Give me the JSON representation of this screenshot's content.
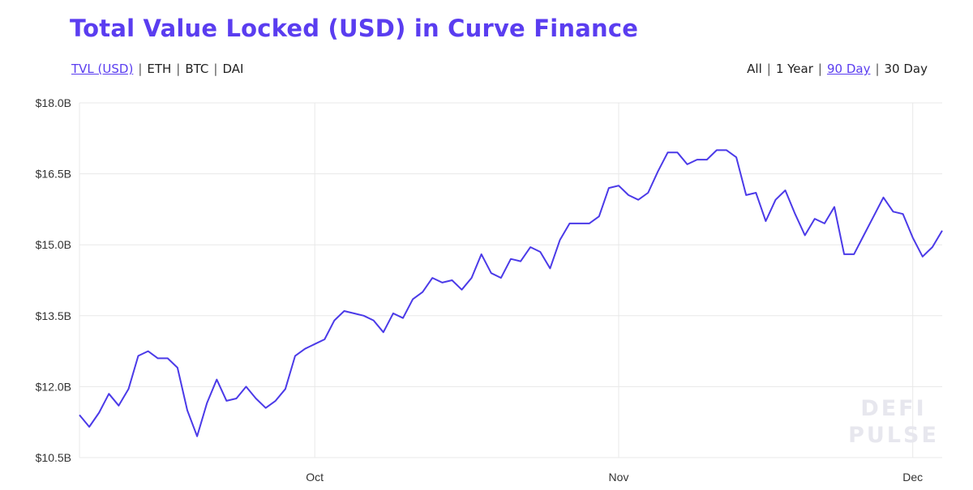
{
  "colors": {
    "accent": "#5a3df0",
    "line": "#4b3ae8",
    "grid": "#e8e8e8"
  },
  "title": "Total Value Locked (USD) in Curve Finance",
  "metric_toggles": [
    {
      "label": "TVL (USD)",
      "active": true
    },
    {
      "label": "ETH",
      "active": false
    },
    {
      "label": "BTC",
      "active": false
    },
    {
      "label": "DAI",
      "active": false
    }
  ],
  "range_toggles": [
    {
      "label": "All",
      "active": false
    },
    {
      "label": "1 Year",
      "active": false
    },
    {
      "label": "90 Day",
      "active": true
    },
    {
      "label": "30 Day",
      "active": false
    }
  ],
  "watermark": [
    "DEFI",
    "PULSE"
  ],
  "chart_data": {
    "type": "line",
    "title": "Total Value Locked (USD) in Curve Finance",
    "xlabel": "",
    "ylabel": "",
    "ylim": [
      10.5,
      18.0
    ],
    "ytick_values": [
      10.5,
      12.0,
      13.5,
      15.0,
      16.5,
      18.0
    ],
    "ytick_labels": [
      "$10.5B",
      "$12.0B",
      "$13.5B",
      "$15.0B",
      "$16.5B",
      "$18.0B"
    ],
    "xticks": [
      {
        "label": "Oct",
        "day": 24
      },
      {
        "label": "Nov",
        "day": 55
      },
      {
        "label": "Dec",
        "day": 85
      }
    ],
    "grid": true,
    "legend": "none",
    "series": [
      {
        "values": [
          11.4,
          11.15,
          11.45,
          11.85,
          11.6,
          11.95,
          12.65,
          12.75,
          12.6,
          12.6,
          12.4,
          11.5,
          10.95,
          11.65,
          12.15,
          11.7,
          11.75,
          12.0,
          11.75,
          11.55,
          11.7,
          11.95,
          12.65,
          12.8,
          12.9,
          13.0,
          13.4,
          13.6,
          13.55,
          13.5,
          13.4,
          13.15,
          13.55,
          13.45,
          13.85,
          14.0,
          14.3,
          14.2,
          14.25,
          14.05,
          14.3,
          14.8,
          14.4,
          14.3,
          14.7,
          14.65,
          14.95,
          14.85,
          14.5,
          15.1,
          15.45,
          15.45,
          15.45,
          15.6,
          16.2,
          16.25,
          16.05,
          15.95,
          16.1,
          16.55,
          16.95,
          16.95,
          16.7,
          16.8,
          16.8,
          17.0,
          17.0,
          16.85,
          16.05,
          16.1,
          15.5,
          15.95,
          16.15,
          15.65,
          15.2,
          15.55,
          15.45,
          15.8,
          14.8,
          14.8,
          15.2,
          15.6,
          16.0,
          15.7,
          15.65,
          15.15,
          14.75,
          14.95,
          15.3
        ]
      }
    ]
  }
}
